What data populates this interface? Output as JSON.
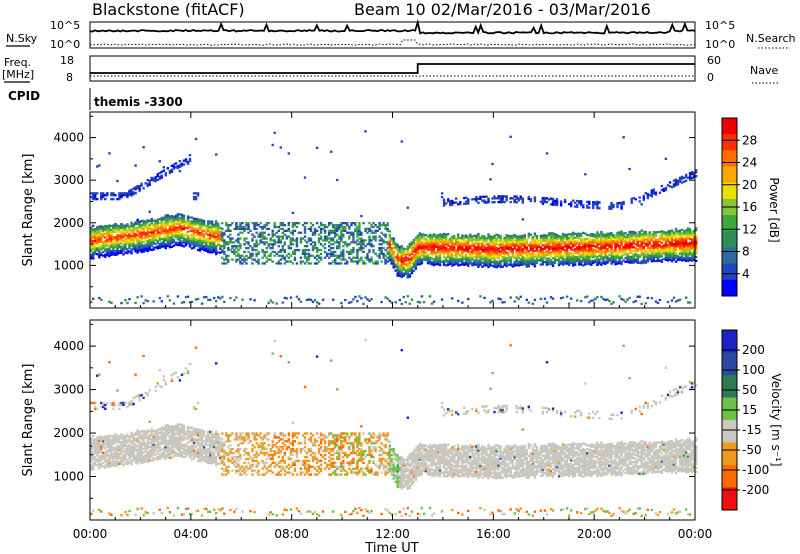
{
  "chart_data": {
    "type": "heatmap",
    "header": {
      "station": "Blackstone (fitACF)",
      "beam_dates": "Beam 10  02/Mar/2016 - 03/Mar/2016"
    },
    "time_axis": {
      "label": "Time UT",
      "ticks": [
        "00:00",
        "04:00",
        "08:00",
        "12:00",
        "16:00",
        "20:00",
        "00:00"
      ],
      "range_hours": [
        0,
        24
      ]
    },
    "top_panels": {
      "nsky_label": "N.Sky",
      "nsearch_label": "N.Search",
      "noise_ticks": [
        "10^5",
        "10^0"
      ],
      "freq_label_1": "Freq.",
      "freq_label_2": "[MHz]",
      "freq_ticks": [
        "18",
        "8"
      ],
      "nave_label": "Nave",
      "nave_ticks": [
        "60",
        "0"
      ],
      "cpid_label": "CPID",
      "cpid_value": "themis -3300",
      "freq_step_time_h": 13.0
    },
    "power_panel": {
      "ylabel": "Slant Range [km]",
      "yticks": [
        1000,
        2000,
        3000,
        4000
      ],
      "ylim": [
        0,
        4600
      ],
      "colorbar_label": "Power [dB]",
      "colorbar_ticks": [
        "28",
        "24",
        "20",
        "16",
        "12",
        "8",
        "4"
      ],
      "colors": [
        "#0000ff",
        "#2244bb",
        "#2e6b9a",
        "#2f8b57",
        "#3ea93a",
        "#88c43a",
        "#e8e000",
        "#f5a800",
        "#ff7000",
        "#ff3000",
        "#ee0000"
      ]
    },
    "velocity_panel": {
      "ylabel": "Slant Range [km]",
      "yticks": [
        1000,
        2000,
        3000,
        4000
      ],
      "ylim": [
        0,
        4600
      ],
      "colorbar_label": "Velocity [m s⁻¹]",
      "colorbar_ticks": [
        "200",
        "100",
        "50",
        "15",
        "-15",
        "-50",
        "-100",
        "-200"
      ],
      "colors": [
        "#1a22c8",
        "#2a4aa0",
        "#2e7a50",
        "#6cc24a",
        "#c8c8c0",
        "#ee9a20",
        "#ff6a00",
        "#ee1010"
      ]
    },
    "ionospheric_band": {
      "description_hours": [
        0,
        24
      ],
      "center_km": [
        [
          0,
          1550
        ],
        [
          2,
          1700
        ],
        [
          3.5,
          1850
        ],
        [
          4.5,
          1700
        ],
        [
          5.5,
          1600
        ],
        [
          6,
          1450
        ],
        [
          11.8,
          1500
        ],
        [
          12.2,
          1100
        ],
        [
          12.6,
          1100
        ],
        [
          13,
          1400
        ],
        [
          16,
          1350
        ],
        [
          20,
          1400
        ],
        [
          24,
          1500
        ]
      ]
    }
  }
}
